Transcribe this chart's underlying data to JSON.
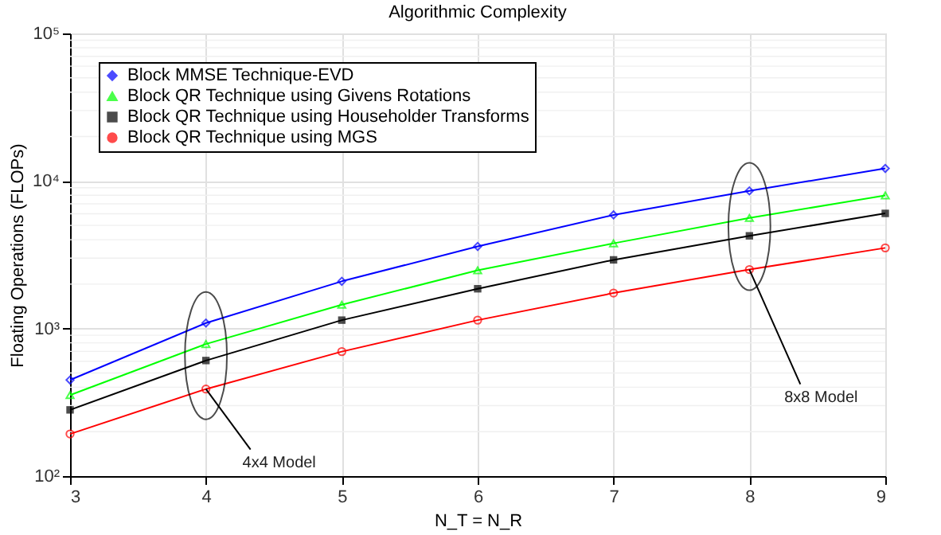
{
  "chart_data": {
    "type": "line",
    "title": "Algorithmic Complexity",
    "xlabel": "N_T = N_R",
    "ylabel": "Floating Operations (FLOPs)",
    "x": [
      3,
      4,
      5,
      6,
      7,
      8,
      9
    ],
    "series": [
      {
        "name": "Block MMSE Technique-EVD",
        "color": "#0000ff",
        "marker": "diamond",
        "values": [
          448,
          1090,
          2090,
          3600,
          5890,
          8570,
          12170
        ]
      },
      {
        "name": "Block QR Technique using Givens Rotations",
        "color": "#00ff00",
        "marker": "triangle",
        "values": [
          354,
          785,
          1450,
          2480,
          3780,
          5620,
          7980
        ]
      },
      {
        "name": "Block QR Technique using Householder Transforms",
        "color": "#000000",
        "marker": "square",
        "values": [
          281,
          607,
          1140,
          1860,
          2920,
          4250,
          6030
        ]
      },
      {
        "name": "Block QR Technique using MGS",
        "color": "#ff0000",
        "marker": "circle",
        "values": [
          193,
          389,
          698,
          1140,
          1740,
          2510,
          3520
        ]
      }
    ],
    "xlim": [
      3,
      9
    ],
    "xticks": [
      3,
      4,
      5,
      6,
      7,
      8,
      9
    ],
    "ylim": [
      100,
      100000
    ],
    "yticks": [
      {
        "value": 100,
        "label": "10²"
      },
      {
        "value": 1000,
        "label": "10³"
      },
      {
        "value": 10000,
        "label": "10⁴"
      },
      {
        "value": 100000,
        "label": "10⁵"
      }
    ],
    "log": "y",
    "grid": true,
    "legend": "top left",
    "line_style": "solid",
    "annotations": [
      {
        "text": "4x4 Model",
        "x": 4,
        "y": 389
      },
      {
        "text": "8x8 Model",
        "x": 8,
        "y": 2510
      }
    ]
  }
}
